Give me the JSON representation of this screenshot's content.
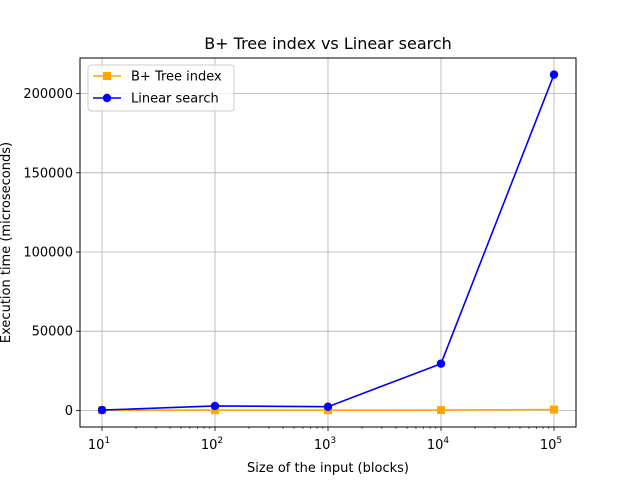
{
  "chart_data": {
    "type": "line",
    "title": "B+ Tree index vs Linear search",
    "xlabel": "Size of the input (blocks)",
    "ylabel": "Execution time (microseconds)",
    "xscale": "log",
    "x": [
      10,
      100,
      1000,
      10000,
      100000
    ],
    "x_tick_labels": [
      {
        "base": "10",
        "exp": "1"
      },
      {
        "base": "10",
        "exp": "2"
      },
      {
        "base": "10",
        "exp": "3"
      },
      {
        "base": "10",
        "exp": "4"
      },
      {
        "base": "10",
        "exp": "5"
      }
    ],
    "y_ticks": [
      0,
      50000,
      100000,
      150000,
      200000
    ],
    "y_tick_labels": [
      "0",
      "50000",
      "100000",
      "150000",
      "200000"
    ],
    "ylim": [
      -10500,
      222500
    ],
    "grid": true,
    "legend_position": "top-left",
    "series": [
      {
        "name": "B+ Tree index",
        "color": "#ffa500",
        "marker": "square",
        "values": [
          100,
          150,
          100,
          200,
          500
        ]
      },
      {
        "name": "Linear search",
        "color": "#0000ff",
        "marker": "circle",
        "values": [
          200,
          2800,
          2300,
          29500,
          212000
        ]
      }
    ]
  }
}
